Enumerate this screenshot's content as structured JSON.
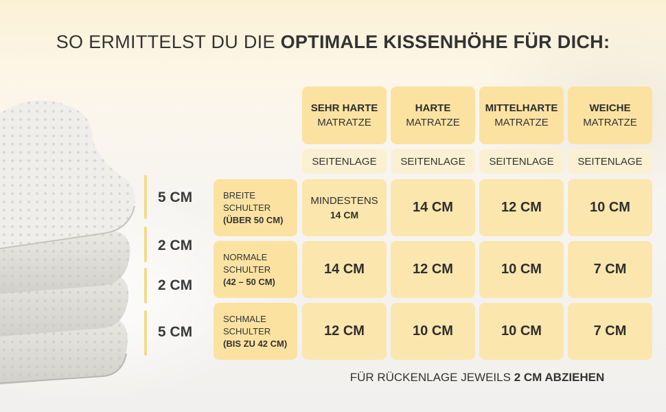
{
  "headline": {
    "prefix": "SO ERMITTELST DU DIE ",
    "bold": "OPTIMALE KISSENHÖHE FÜR DICH:"
  },
  "layers": [
    {
      "label": "5 CM"
    },
    {
      "label": "2 CM"
    },
    {
      "label": "2 CM"
    },
    {
      "label": "5 CM"
    }
  ],
  "columns": [
    {
      "line1": "SEHR HARTE",
      "line2": "MATRATZE",
      "position": "SEITENLAGE"
    },
    {
      "line1": "HARTE",
      "line2": "MATRATZE",
      "position": "SEITENLAGE"
    },
    {
      "line1": "MITTELHARTE",
      "line2": "MATRATZE",
      "position": "SEITENLAGE"
    },
    {
      "line1": "WEICHE",
      "line2": "MATRATZE",
      "position": "SEITENLAGE"
    }
  ],
  "rows": [
    {
      "line1": "BREITE",
      "line2": "SCHULTER",
      "line3": "(ÜBER 50 CM)",
      "values": [
        "MINDESTENS",
        "14 CM",
        "12 CM",
        "10 CM"
      ],
      "first_value_sub": "14 CM"
    },
    {
      "line1": "NORMALE",
      "line2": "SCHULTER",
      "line3": "(42 – 50 CM)",
      "values": [
        "14 CM",
        "12 CM",
        "10 CM",
        "7 CM"
      ]
    },
    {
      "line1": "SCHMALE",
      "line2": "SCHULTER",
      "line3": "(BIS ZU 42 CM)",
      "values": [
        "12 CM",
        "10 CM",
        "10 CM",
        "7 CM"
      ]
    }
  ],
  "footnote": {
    "prefix": "FÜR RÜCKENLAGE JEWEILS ",
    "bold": "2 CM ABZIEHEN"
  }
}
